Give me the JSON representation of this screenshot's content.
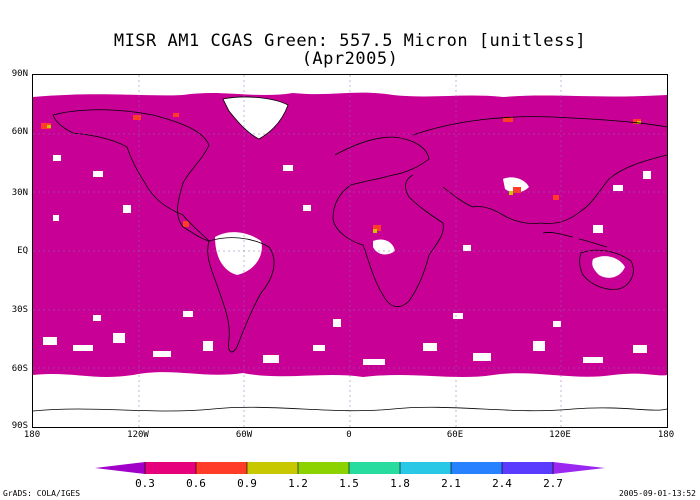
{
  "title": {
    "line1": "MISR AM1 CGAS Green: 557.5 Micron [unitless]",
    "line2": "(Apr2005)"
  },
  "map": {
    "lat_labels": [
      "90N",
      "60N",
      "30N",
      "EQ",
      "30S",
      "60S",
      "90S"
    ],
    "lon_labels": [
      "180",
      "120W",
      "60W",
      "0",
      "60E",
      "120E",
      "180"
    ],
    "ocean_fill_color": "#c80096",
    "no_data_color": "#ffffff",
    "coastline_color": "#000000",
    "grid_color": "#8a6fb0"
  },
  "colorbar": {
    "tick_labels": [
      "0.3",
      "0.6",
      "0.9",
      "1.2",
      "1.5",
      "1.8",
      "2.1",
      "2.4",
      "2.7"
    ],
    "colors": [
      "#a000c8",
      "#e6007c",
      "#ff3c28",
      "#c8c800",
      "#8cd200",
      "#28dca0",
      "#28c8e6",
      "#2882ff",
      "#5a3cff",
      "#9b28f0"
    ]
  },
  "footer": {
    "credit": "GrADS: COLA/IGES",
    "timestamp": "2005-09-01-13:52"
  }
}
